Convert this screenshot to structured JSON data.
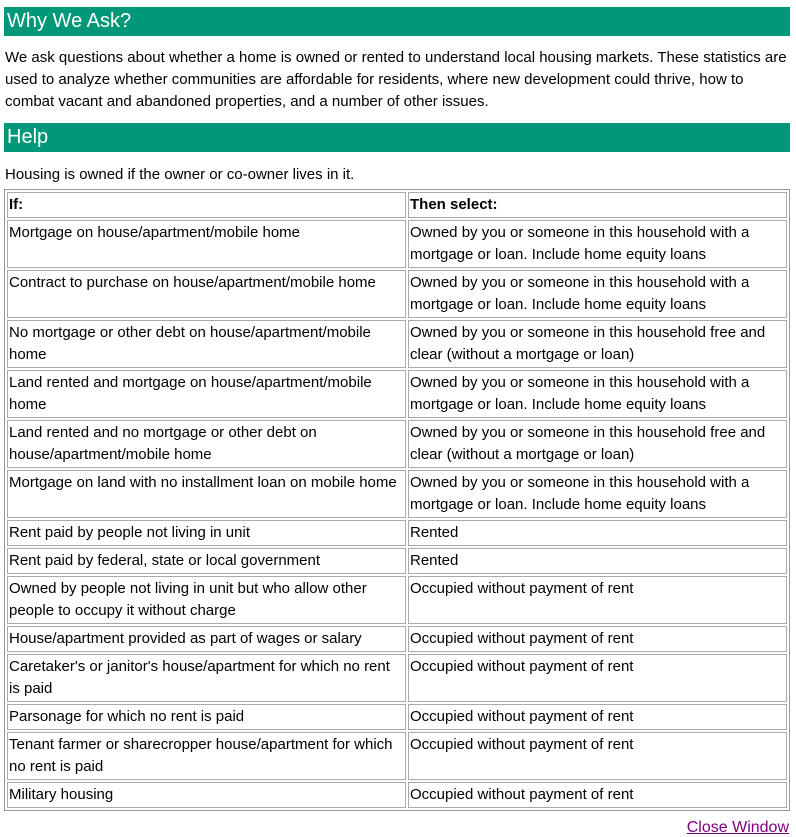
{
  "why": {
    "title": "Why We Ask?",
    "text": "We ask questions about whether a home is owned or rented to understand local housing markets. These statistics are used to analyze whether communities are affordable for residents, where new development could thrive, how to combat vacant and abandoned properties, and a number of other issues."
  },
  "help": {
    "title": "Help",
    "intro": "Housing is owned if the owner or co-owner lives in it.",
    "table": {
      "headers": [
        "If:",
        "Then select:"
      ],
      "rows": [
        [
          "Mortgage on house/apartment/mobile home",
          "Owned by you or someone in this household with a mortgage or loan. Include home equity loans"
        ],
        [
          "Contract to purchase on house/apartment/mobile home",
          "Owned by you or someone in this household with a mortgage or loan. Include home equity loans"
        ],
        [
          "No mortgage or other debt on house/apartment/mobile home",
          "Owned by you or someone in this household free and clear (without a mortgage or loan)"
        ],
        [
          "Land rented and mortgage on house/apartment/mobile home",
          "Owned by you or someone in this household with a mortgage or loan. Include home equity loans"
        ],
        [
          "Land rented and no mortgage or other debt on house/apartment/mobile home",
          "Owned by you or someone in this household free and clear (without a mortgage or loan)"
        ],
        [
          "Mortgage on land with no installment loan on mobile home",
          "Owned by you or someone in this household with a mortgage or loan. Include home equity loans"
        ],
        [
          "Rent paid by people not living in unit",
          "Rented"
        ],
        [
          "Rent paid by federal, state or local government",
          "Rented"
        ],
        [
          "Owned by people not living in unit but who allow other people to occupy it without charge",
          "Occupied without payment of rent"
        ],
        [
          "House/apartment provided as part of wages or salary",
          "Occupied without payment of rent"
        ],
        [
          "Caretaker's or janitor's house/apartment for which no rent is paid",
          "Occupied without payment of rent"
        ],
        [
          "Parsonage for which no rent is paid",
          "Occupied without payment of rent"
        ],
        [
          "Tenant farmer or sharecropper house/apartment for which no rent is paid",
          "Occupied without payment of rent"
        ],
        [
          "Military housing",
          "Occupied without payment of rent"
        ]
      ]
    }
  },
  "footer": {
    "close_label": "Close Window"
  },
  "colors": {
    "header_bar": "#009878",
    "link": "#800080"
  }
}
